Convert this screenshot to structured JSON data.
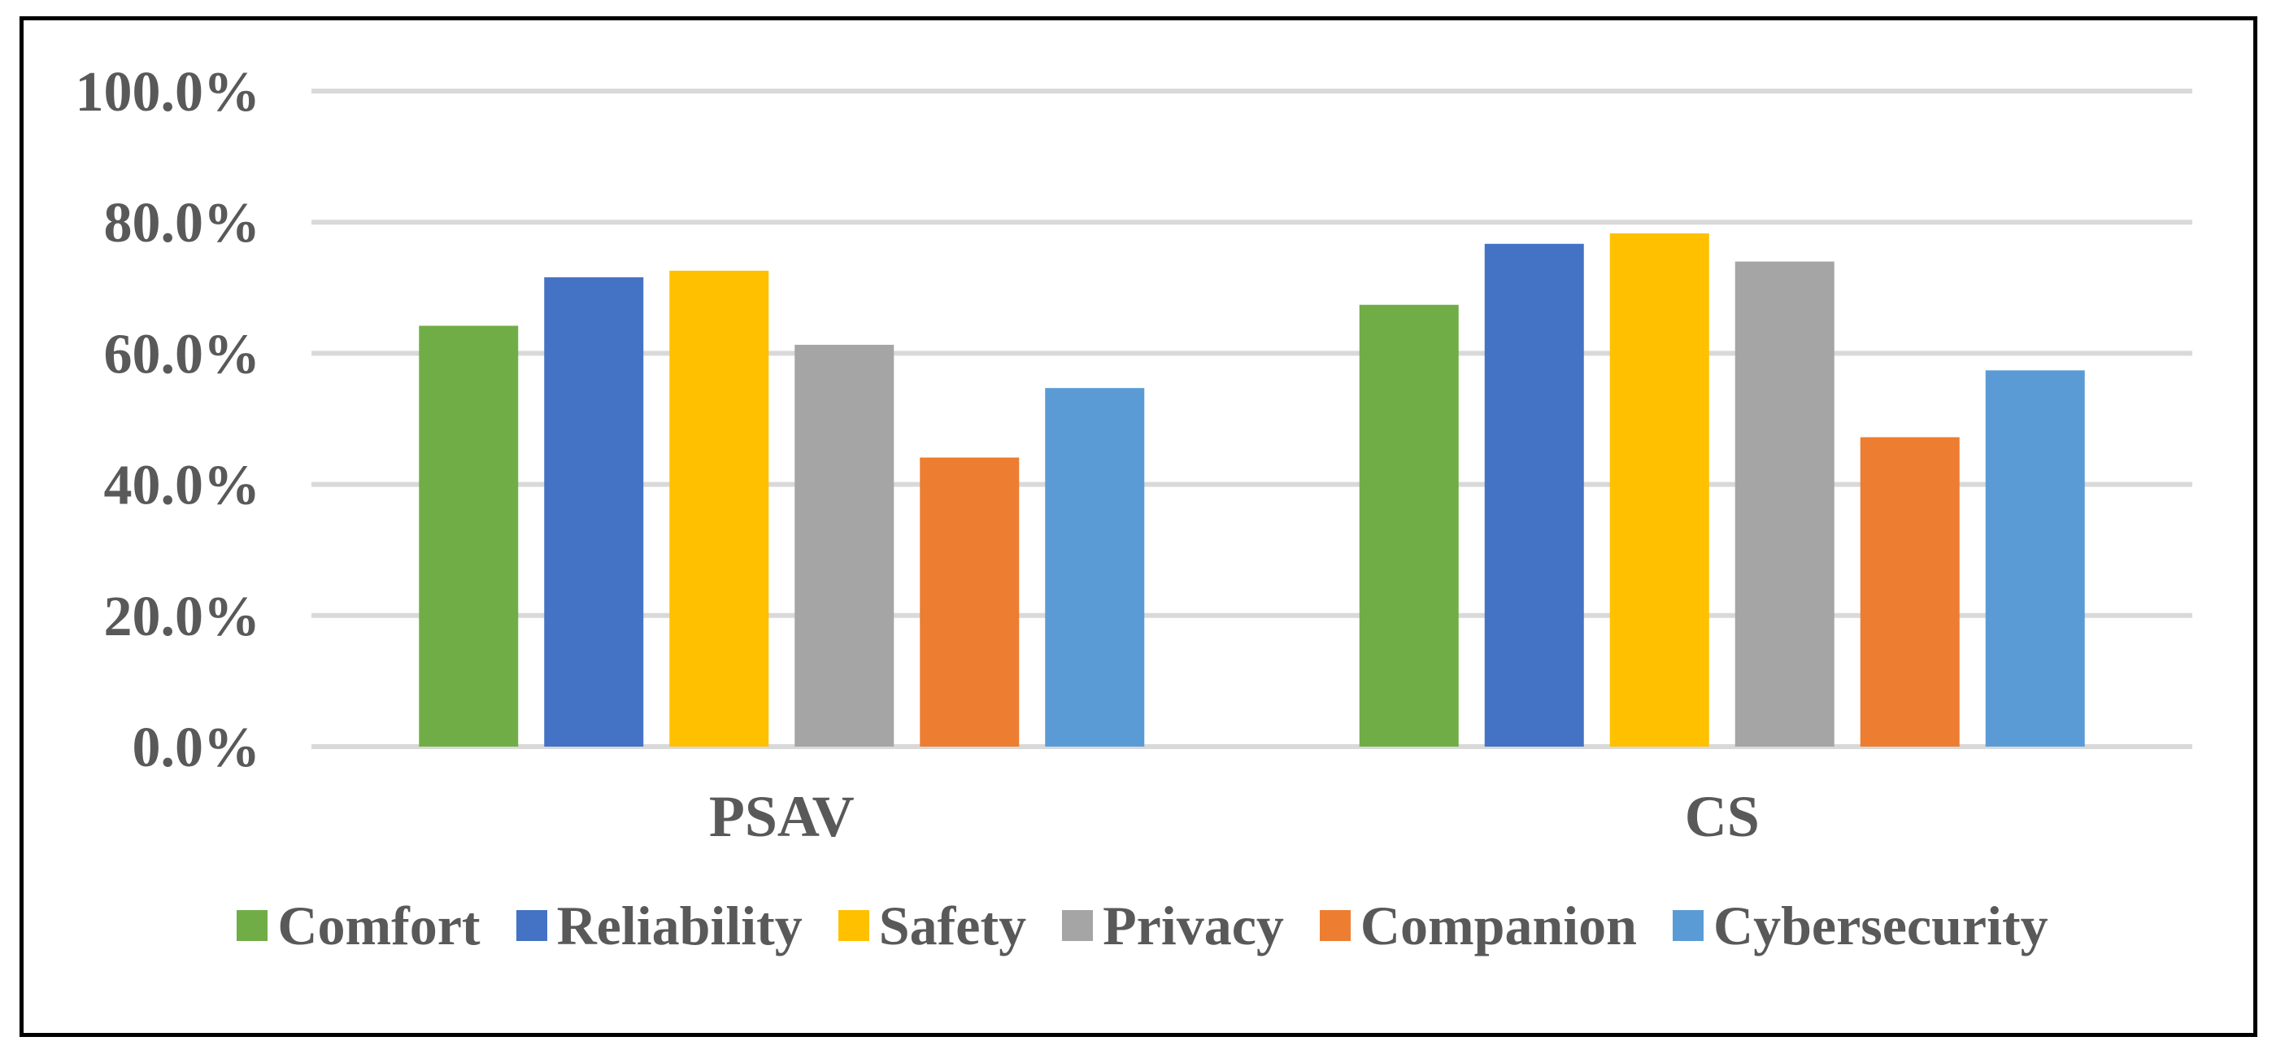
{
  "chart_data": {
    "type": "bar",
    "title": "",
    "xlabel": "",
    "ylabel": "",
    "categories": [
      "PSAV",
      "CS"
    ],
    "ylim": [
      0,
      100
    ],
    "yticks": [
      "0.0%",
      "20.0%",
      "40.0%",
      "60.0%",
      "80.0%",
      "100.0%"
    ],
    "grid": true,
    "legend_position": "bottom",
    "series": [
      {
        "name": "Comfort",
        "color": "#70AD47",
        "values": [
          64.2,
          67.4
        ]
      },
      {
        "name": "Reliability",
        "color": "#4472C4",
        "values": [
          71.6,
          76.7
        ]
      },
      {
        "name": "Safety",
        "color": "#FFC000",
        "values": [
          72.6,
          78.3
        ]
      },
      {
        "name": "Privacy",
        "color": "#A5A5A5",
        "values": [
          61.3,
          74.0
        ]
      },
      {
        "name": "Companion",
        "color": "#ED7D31",
        "values": [
          44.1,
          47.2
        ]
      },
      {
        "name": "Cybersecurity",
        "color": "#5B9BD5",
        "values": [
          54.7,
          57.4
        ]
      }
    ]
  }
}
